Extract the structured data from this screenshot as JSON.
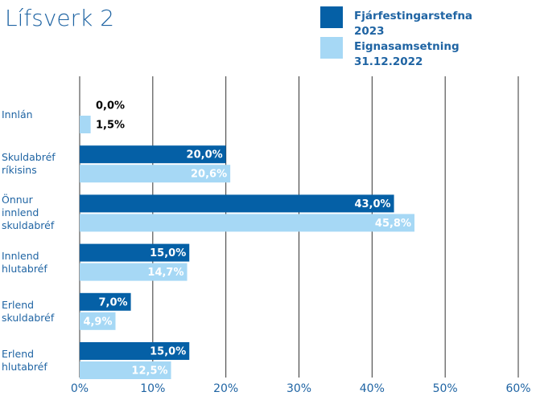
{
  "chart_data": {
    "type": "barh",
    "title": "Lífsverk 2",
    "categories": [
      "Innlán",
      "Skuldabréf ríkisins",
      "Önnur innlend skuldabréf",
      "Innlend hlutabréf",
      "Erlend skuldabréf",
      "Erlend hlutabréf"
    ],
    "series": [
      {
        "name": "Fjárfestingarstefna 2023",
        "color": "#0560a6",
        "values": [
          0,
          20,
          43,
          15,
          7,
          15
        ],
        "value_labels": [
          "0,0%",
          "20,0%",
          "43,0%",
          "15,0%",
          "7,0%",
          "15,0%"
        ]
      },
      {
        "name": "Eignasamsetning 31.12.2022",
        "color": "#a6d8f5",
        "values": [
          1.5,
          20.6,
          45.8,
          14.7,
          4.9,
          12.5
        ],
        "value_labels": [
          "1,5%",
          "20,6%",
          "45,8%",
          "14,7%",
          "4,9%",
          "12,5%"
        ]
      }
    ],
    "xlim": [
      0,
      60
    ],
    "xticks": [
      {
        "value": 0,
        "label": "0%"
      },
      {
        "value": 10,
        "label": "10%"
      },
      {
        "value": 20,
        "label": "20%"
      },
      {
        "value": 30,
        "label": "30%"
      },
      {
        "value": 40,
        "label": "40%"
      },
      {
        "value": 50,
        "label": "50%"
      },
      {
        "value": 60,
        "label": "60%"
      }
    ],
    "grid": true,
    "legend": "top-right"
  }
}
